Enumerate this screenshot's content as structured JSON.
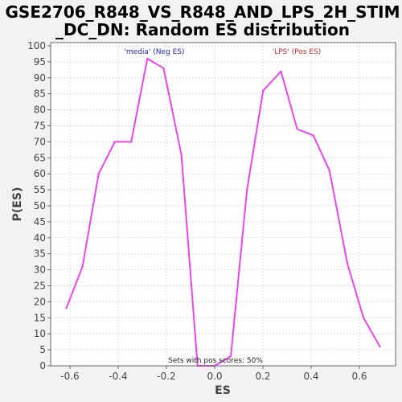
{
  "chart_data": {
    "type": "line",
    "title_lines": [
      "GSE2706_R848_VS_R848_AND_LPS_2H_STIM",
      "_DC_DN: Random ES distribution"
    ],
    "xlabel": "ES",
    "ylabel": "P(ES)",
    "xlim": [
      -0.68,
      0.75
    ],
    "ylim": [
      0,
      101
    ],
    "x_ticks": [
      -0.6,
      -0.4,
      -0.2,
      0.0,
      0.2,
      0.4,
      0.6
    ],
    "x_tick_labels": [
      "-0.6",
      "-0.4",
      "-0.2",
      "0.0",
      "0.2",
      "0.4",
      "0.6"
    ],
    "y_ticks": [
      0,
      5,
      10,
      15,
      20,
      25,
      30,
      35,
      40,
      45,
      50,
      55,
      60,
      65,
      70,
      75,
      80,
      85,
      90,
      95,
      100
    ],
    "y_tick_labels": [
      "0",
      "5",
      "10",
      "15",
      "20",
      "25",
      "30",
      "35",
      "40",
      "45",
      "50",
      "55",
      "60",
      "65",
      "70",
      "75",
      "80",
      "85",
      "90",
      "95",
      "100"
    ],
    "grid": true,
    "series": [
      {
        "color": "#ee44ee",
        "x": [
          -0.615,
          -0.548,
          -0.481,
          -0.414,
          -0.346,
          -0.279,
          -0.212,
          -0.138,
          -0.071,
          0.0,
          0.067,
          0.134,
          0.201,
          0.275,
          0.342,
          0.409,
          0.476,
          0.55,
          0.617,
          0.685
        ],
        "y": [
          18,
          31,
          60,
          70,
          70,
          96,
          93,
          66,
          0,
          0,
          3,
          55,
          86,
          92,
          74,
          72,
          61,
          32,
          15,
          6
        ]
      }
    ],
    "annotations": {
      "neg_label": "'media' (Neg ES)",
      "neg_color": "#2222bb",
      "pos_label": "'LPS' (Pos ES)",
      "pos_color": "#dd2222",
      "footer": "Sets with pos scores: 50%",
      "footer_color": "#222222"
    }
  }
}
